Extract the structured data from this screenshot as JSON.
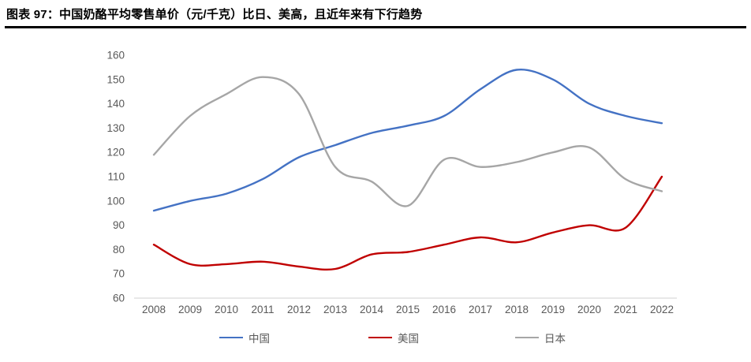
{
  "figure": {
    "title": "图表 97：中国奶酪平均零售单价（元/千克）比日、美高，且近年来有下行趋势"
  },
  "chart_data": {
    "type": "line",
    "title": "中国奶酪平均零售单价（元/千克）比日、美高，且近年来有下行趋势",
    "unit": "元/千克",
    "categories": [
      "2008",
      "2009",
      "2010",
      "2011",
      "2012",
      "2013",
      "2014",
      "2015",
      "2016",
      "2017",
      "2018",
      "2019",
      "2020",
      "2021",
      "2022"
    ],
    "series": [
      {
        "name": "中国",
        "color": "#4472C4",
        "values": [
          96,
          100,
          103,
          109,
          118,
          123,
          128,
          131,
          135,
          146,
          154,
          150,
          140,
          135,
          132
        ]
      },
      {
        "name": "美国",
        "color": "#C00000",
        "values": [
          82,
          74,
          74,
          75,
          73,
          72,
          78,
          79,
          82,
          85,
          83,
          87,
          90,
          89,
          110
        ]
      },
      {
        "name": "日本",
        "color": "#A6A6A6",
        "values": [
          119,
          135,
          144,
          151,
          144,
          114,
          108,
          98,
          117,
          114,
          116,
          120,
          122,
          109,
          104
        ]
      }
    ],
    "ylim": [
      60,
      160
    ],
    "yticks": [
      60,
      70,
      80,
      90,
      100,
      110,
      120,
      130,
      140,
      150,
      160
    ],
    "grid": false,
    "line_smoothing": true,
    "legend_position": "bottom",
    "axis_line_color": "#D9D9D9",
    "tick_label_color": "#595959"
  }
}
